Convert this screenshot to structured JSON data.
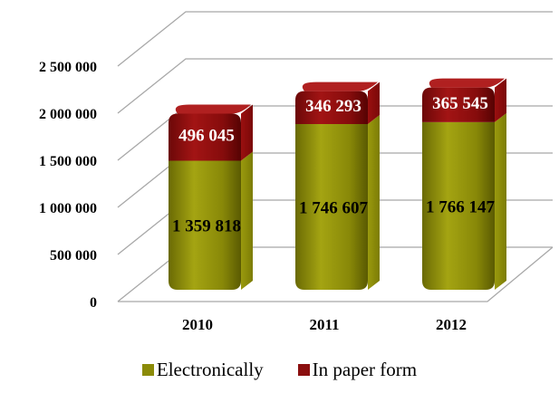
{
  "chart_data": {
    "type": "bar",
    "stacked": true,
    "three_d": true,
    "categories": [
      "2010",
      "2011",
      "2012"
    ],
    "series": [
      {
        "name": "Electronically",
        "values": [
          1359818,
          1746607,
          1766147
        ],
        "value_labels": [
          "1 359 818",
          "1 746 607",
          "1 766 147"
        ],
        "color": "#8b8b08"
      },
      {
        "name": "In paper form",
        "values": [
          496045,
          346293,
          365545
        ],
        "value_labels": [
          "496 045",
          "346 293",
          "365 545"
        ],
        "color": "#8b0f0f"
      }
    ],
    "y_ticks": [
      0,
      500000,
      1000000,
      1500000,
      2000000,
      2500000
    ],
    "y_tick_labels": [
      "0",
      "500 000",
      "1 000 000",
      "1 500 000",
      "2 000 000",
      "2 500 000"
    ],
    "ylim": [
      0,
      2500000
    ],
    "grid": true,
    "legend_position": "bottom"
  }
}
